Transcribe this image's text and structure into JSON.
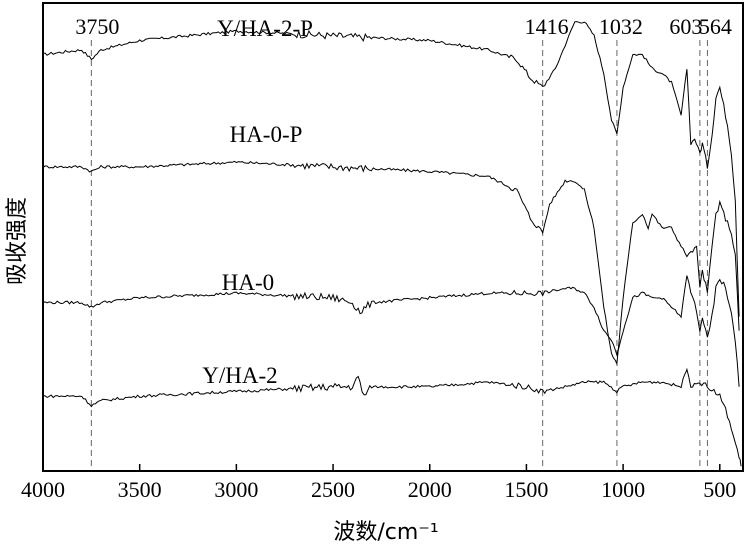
{
  "chart_data": {
    "type": "line",
    "xlabel": "波数/cm⁻¹",
    "ylabel": "吸收强度",
    "x_reversed": true,
    "xlim": [
      4000,
      380
    ],
    "xticks": [
      4000,
      3500,
      3000,
      2500,
      2000,
      1500,
      1000,
      500
    ],
    "grid": false,
    "y_ticks_shown": false,
    "peak_markers": [
      {
        "label": "3750",
        "x": 3750
      },
      {
        "label": "1416",
        "x": 1416
      },
      {
        "label": "1032",
        "x": 1032
      },
      {
        "label": "603",
        "x": 603
      },
      {
        "label": "564",
        "x": 564
      }
    ],
    "series": [
      {
        "name": "Y/HA-2-P",
        "x": [
          4000,
          3800,
          3750,
          3700,
          3500,
          3000,
          2500,
          2000,
          1700,
          1550,
          1480,
          1416,
          1350,
          1300,
          1250,
          1200,
          1150,
          1100,
          1060,
          1032,
          1000,
          950,
          900,
          850,
          800,
          750,
          700,
          670,
          650,
          630,
          603,
          590,
          564,
          540,
          520,
          500,
          480,
          460,
          440,
          420,
          400
        ],
        "y": [
          8.9,
          9.0,
          8.8,
          9.0,
          9.2,
          9.4,
          9.3,
          9.2,
          9.0,
          8.8,
          8.4,
          8.2,
          8.6,
          9.1,
          9.6,
          9.6,
          9.3,
          8.5,
          7.5,
          7.2,
          8.2,
          8.9,
          8.9,
          8.6,
          8.5,
          8.3,
          7.6,
          8.6,
          7.0,
          7.1,
          6.8,
          7.0,
          6.5,
          7.2,
          8.0,
          8.2,
          7.8,
          7.4,
          6.8,
          5.8,
          3.3
        ]
      },
      {
        "name": "HA-0-P",
        "x": [
          4000,
          3800,
          3750,
          3700,
          3500,
          3000,
          2500,
          2000,
          1700,
          1550,
          1480,
          1416,
          1380,
          1300,
          1250,
          1200,
          1150,
          1100,
          1060,
          1032,
          1000,
          950,
          900,
          870,
          850,
          800,
          750,
          700,
          670,
          640,
          620,
          603,
          590,
          564,
          540,
          520,
          500,
          480,
          460,
          440,
          420,
          400
        ],
        "y": [
          6.5,
          6.5,
          6.4,
          6.5,
          6.5,
          6.6,
          6.5,
          6.4,
          6.3,
          6.0,
          5.4,
          5.1,
          5.7,
          6.2,
          6.2,
          6.0,
          5.2,
          3.5,
          2.5,
          2.3,
          3.7,
          5.3,
          5.5,
          5.2,
          5.5,
          5.2,
          5.2,
          4.8,
          4.6,
          4.7,
          4.8,
          3.9,
          4.3,
          3.8,
          4.8,
          5.5,
          5.7,
          5.5,
          5.3,
          5.1,
          4.6,
          3.0
        ]
      },
      {
        "name": "HA-0",
        "x": [
          4000,
          3800,
          3750,
          3700,
          3500,
          3000,
          2500,
          2400,
          2360,
          2300,
          2000,
          1700,
          1500,
          1416,
          1300,
          1250,
          1200,
          1150,
          1100,
          1060,
          1032,
          1000,
          950,
          900,
          850,
          800,
          750,
          700,
          670,
          650,
          630,
          603,
          590,
          564,
          540,
          520,
          500,
          480,
          460,
          440,
          420,
          400
        ],
        "y": [
          3.6,
          3.6,
          3.5,
          3.6,
          3.7,
          3.8,
          3.7,
          3.6,
          3.4,
          3.6,
          3.7,
          3.8,
          3.8,
          3.8,
          3.9,
          3.9,
          3.8,
          3.5,
          3.0,
          2.8,
          2.5,
          3.0,
          3.7,
          3.8,
          3.7,
          3.7,
          3.5,
          3.3,
          4.2,
          3.8,
          3.6,
          3.0,
          3.3,
          2.8,
          3.3,
          3.9,
          4.1,
          4.0,
          3.7,
          3.4,
          2.8,
          1.8
        ]
      },
      {
        "name": "Y/HA-2",
        "x": [
          4000,
          3800,
          3750,
          3700,
          3500,
          3000,
          2500,
          2400,
          2370,
          2340,
          2300,
          2000,
          1700,
          1500,
          1416,
          1300,
          1200,
          1100,
          1032,
          1000,
          900,
          800,
          700,
          680,
          670,
          650,
          603,
          564,
          530,
          500,
          480,
          460,
          440,
          420,
          400,
          390
        ],
        "y": [
          1.6,
          1.6,
          1.4,
          1.5,
          1.6,
          1.7,
          1.8,
          1.8,
          2.0,
          1.6,
          1.8,
          1.8,
          1.9,
          1.8,
          1.7,
          1.8,
          1.9,
          1.9,
          1.7,
          1.8,
          1.9,
          1.9,
          1.8,
          2.1,
          2.2,
          1.8,
          1.9,
          1.8,
          1.7,
          1.6,
          1.4,
          1.2,
          0.9,
          0.6,
          0.3,
          0.1
        ]
      }
    ]
  }
}
